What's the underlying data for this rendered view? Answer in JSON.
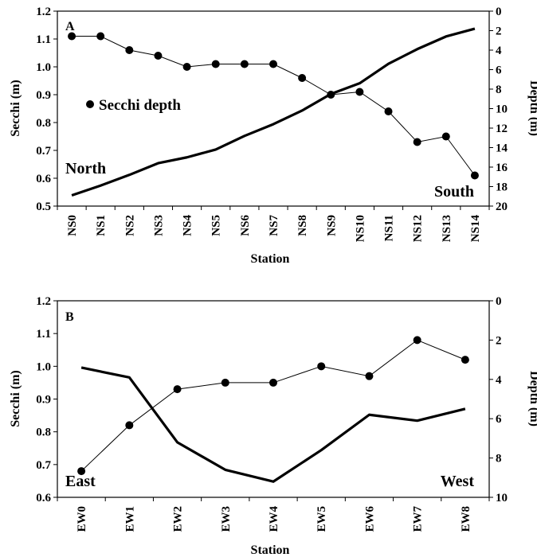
{
  "chart_data": [
    {
      "type": "line",
      "panel_label": "A",
      "categories": [
        "NS0",
        "NS1",
        "NS2",
        "NS3",
        "NS4",
        "NS5",
        "NS6",
        "NS7",
        "NS8",
        "NS9",
        "NS10",
        "NS11",
        "NS12",
        "NS13",
        "NS14"
      ],
      "xlabel": "Station",
      "ylabel": "Secchi (m)",
      "y2label": "Depth (m)",
      "ylim": [
        0.5,
        1.2
      ],
      "yticks": [
        "0.5",
        "0.6",
        "0.7",
        "0.8",
        "0.9",
        "1.0",
        "1.1",
        "1.2"
      ],
      "y2lim": [
        20,
        0
      ],
      "y2ticks": [
        "0",
        "2",
        "4",
        "6",
        "8",
        "10",
        "12",
        "14",
        "16",
        "18",
        "20"
      ],
      "series": [
        {
          "name": "Secchi depth",
          "axis": "left",
          "marker": "circle",
          "values": [
            1.11,
            1.11,
            1.06,
            1.04,
            1.0,
            1.01,
            1.01,
            1.01,
            0.96,
            0.9,
            0.91,
            0.84,
            0.73,
            0.75,
            0.61
          ]
        },
        {
          "axis": "right",
          "marker": "none",
          "values": [
            18.9,
            17.9,
            16.8,
            15.6,
            15.0,
            14.2,
            12.8,
            11.6,
            10.2,
            8.5,
            7.4,
            5.4,
            3.9,
            2.6,
            1.8
          ]
        }
      ],
      "annotations": [
        "North",
        "South"
      ],
      "legend_position": "left-middle"
    },
    {
      "type": "line",
      "panel_label": "B",
      "categories": [
        "EW0",
        "EW1",
        "EW2",
        "EW3",
        "EW4",
        "EW5",
        "EW6",
        "EW7",
        "EW8"
      ],
      "xlabel": "Station",
      "ylabel": "Secchi (m)",
      "y2label": "Depth (m)",
      "ylim": [
        0.6,
        1.2
      ],
      "yticks": [
        "0.6",
        "0.7",
        "0.8",
        "0.9",
        "1.0",
        "1.1",
        "1.2"
      ],
      "y2lim": [
        10,
        0
      ],
      "y2ticks": [
        "0",
        "2",
        "4",
        "6",
        "8",
        "10"
      ],
      "series": [
        {
          "name": "Secchi depth",
          "axis": "left",
          "marker": "circle",
          "values": [
            0.68,
            0.82,
            0.93,
            0.95,
            0.95,
            1.0,
            0.97,
            1.08,
            1.02
          ]
        },
        {
          "axis": "right",
          "marker": "none",
          "values": [
            3.4,
            3.9,
            7.2,
            8.6,
            9.2,
            7.6,
            5.8,
            6.1,
            5.5
          ]
        }
      ],
      "annotations": [
        "East",
        "West"
      ]
    }
  ]
}
